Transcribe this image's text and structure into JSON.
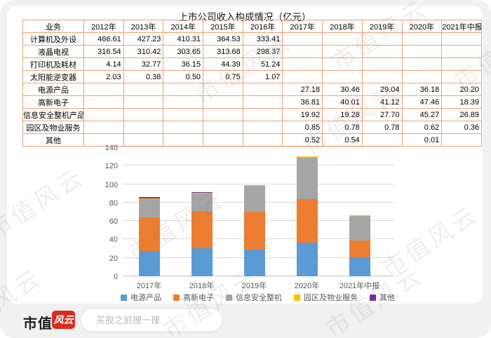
{
  "title": "上市公司收入构成情况（亿元）",
  "watermark": {
    "text": "市值风云"
  },
  "table": {
    "headers": [
      "业务",
      "2012年",
      "2013年",
      "2014年",
      "2015年",
      "2016年",
      "2017年",
      "2018年",
      "2019年",
      "2020年",
      "2021年中报"
    ],
    "rows": [
      {
        "label": "计算机及外设",
        "values": [
          "466.61",
          "427.23",
          "410.31",
          "364.53",
          "333.41",
          "",
          "",
          "",
          "",
          ""
        ]
      },
      {
        "label": "液晶电视",
        "values": [
          "316.54",
          "310.42",
          "303.65",
          "313.68",
          "298.37",
          "",
          "",
          "",
          "",
          ""
        ]
      },
      {
        "label": "打印机及耗材",
        "values": [
          "4.14",
          "32.77",
          "36.15",
          "44.39",
          "51.24",
          "",
          "",
          "",
          "",
          ""
        ]
      },
      {
        "label": "太阳能逆变器",
        "values": [
          "2.03",
          "0.38",
          "0.50",
          "0.75",
          "1.07",
          "",
          "",
          "",
          "",
          ""
        ]
      },
      {
        "label": "电源产品",
        "values": [
          "",
          "",
          "",
          "",
          "",
          "27.18",
          "30.46",
          "29.04",
          "36.18",
          "20.20"
        ]
      },
      {
        "label": "高新电子",
        "values": [
          "",
          "",
          "",
          "",
          "",
          "36.81",
          "40.01",
          "41.12",
          "47.46",
          "18.39"
        ]
      },
      {
        "label": "信息安全整机产品",
        "values": [
          "",
          "",
          "",
          "",
          "",
          "19.92",
          "19.28",
          "27.70",
          "45.27",
          "26.89"
        ]
      },
      {
        "label": "园区及物业服务",
        "values": [
          "",
          "",
          "",
          "",
          "",
          "0.85",
          "0.78",
          "0.78",
          "0.62",
          "0.36"
        ]
      },
      {
        "label": "其他",
        "values": [
          "",
          "",
          "",
          "",
          "",
          "0.52",
          "0.54",
          "",
          "0.01",
          ""
        ]
      }
    ]
  },
  "chart_data": {
    "type": "bar",
    "stacked": true,
    "title": "上市公司收入构成情况（亿元）",
    "categories": [
      "2017年",
      "2018年",
      "2019年",
      "2020年",
      "2021年中报"
    ],
    "series": [
      {
        "name": "电源产品",
        "color": "#5B9BD5",
        "values": [
          27.18,
          30.46,
          29.04,
          36.18,
          20.2
        ]
      },
      {
        "name": "高新电子",
        "color": "#ED7D31",
        "values": [
          36.81,
          40.01,
          41.12,
          47.46,
          18.39
        ]
      },
      {
        "name": "信息安全整机",
        "color": "#A5A5A5",
        "values": [
          19.92,
          19.28,
          27.7,
          45.27,
          26.89
        ]
      },
      {
        "name": "园区及物业服务",
        "color": "#FFC000",
        "values": [
          0.85,
          0.78,
          0.78,
          0.62,
          0.36
        ]
      },
      {
        "name": "其他",
        "color": "#7030A0",
        "values": [
          0.52,
          0.54,
          0,
          0.01,
          0
        ]
      }
    ],
    "xlabel": "",
    "ylabel": "",
    "ylim": [
      0,
      140
    ],
    "ytick_step": 20,
    "grid": true,
    "legend_position": "bottom"
  },
  "footer": {
    "logo_text": "市值",
    "logo_badge": "风云",
    "search_placeholder": "买股之前搜一搜"
  }
}
